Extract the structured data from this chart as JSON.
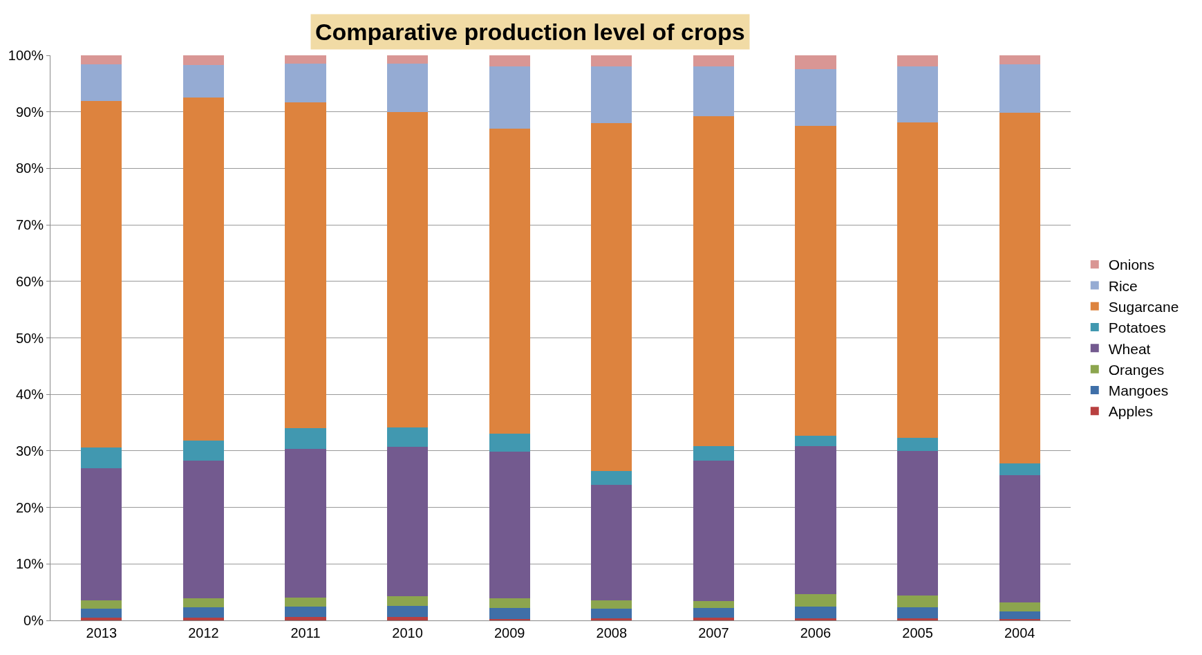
{
  "chart_data": {
    "type": "bar",
    "stacked": true,
    "title": "Comparative production level of crops",
    "categories": [
      "2013",
      "2012",
      "2011",
      "2010",
      "2009",
      "2008",
      "2007",
      "2006",
      "2005",
      "2004"
    ],
    "series": [
      {
        "name": "Apples",
        "color": "#b84040",
        "values": [
          0.5,
          0.5,
          0.6,
          0.6,
          0.3,
          0.4,
          0.5,
          0.4,
          0.4,
          0.3
        ]
      },
      {
        "name": "Mangoes",
        "color": "#3f6fa8",
        "values": [
          1.6,
          1.8,
          1.9,
          2.0,
          1.9,
          1.7,
          1.7,
          2.1,
          1.9,
          1.3
        ]
      },
      {
        "name": "Oranges",
        "color": "#8ca54e",
        "values": [
          1.5,
          1.6,
          1.5,
          1.7,
          1.7,
          1.5,
          1.2,
          2.2,
          2.1,
          1.6
        ]
      },
      {
        "name": "Wheat",
        "color": "#735a8f",
        "values": [
          23.3,
          24.4,
          26.4,
          26.4,
          26.0,
          20.4,
          24.9,
          26.2,
          25.6,
          22.5
        ]
      },
      {
        "name": "Potatoes",
        "color": "#4198b0",
        "values": [
          3.7,
          3.5,
          3.6,
          3.5,
          3.1,
          2.4,
          2.6,
          1.8,
          2.3,
          2.1
        ]
      },
      {
        "name": "Sugarcane",
        "color": "#dd833e",
        "values": [
          61.3,
          60.7,
          57.7,
          55.8,
          54.0,
          61.6,
          58.3,
          54.8,
          55.8,
          62.0
        ]
      },
      {
        "name": "Rice",
        "color": "#95abd3",
        "values": [
          6.5,
          5.8,
          6.8,
          8.5,
          11.0,
          10.0,
          8.8,
          10.1,
          9.9,
          8.6
        ]
      },
      {
        "name": "Onions",
        "color": "#d99694",
        "values": [
          1.6,
          1.7,
          1.5,
          1.5,
          2.0,
          2.0,
          2.0,
          2.4,
          2.0,
          1.6
        ]
      }
    ],
    "ylim": [
      0,
      100
    ],
    "yticks": [
      {
        "value": 0,
        "label": "0%"
      },
      {
        "value": 10,
        "label": "10%"
      },
      {
        "value": 20,
        "label": "20%"
      },
      {
        "value": 30,
        "label": "30%"
      },
      {
        "value": 40,
        "label": "40%"
      },
      {
        "value": 50,
        "label": "50%"
      },
      {
        "value": 60,
        "label": "60%"
      },
      {
        "value": 70,
        "label": "70%"
      },
      {
        "value": 80,
        "label": "80%"
      },
      {
        "value": 90,
        "label": "90%"
      },
      {
        "value": 100,
        "label": "100%"
      }
    ],
    "grid": "y",
    "legend": "right"
  }
}
